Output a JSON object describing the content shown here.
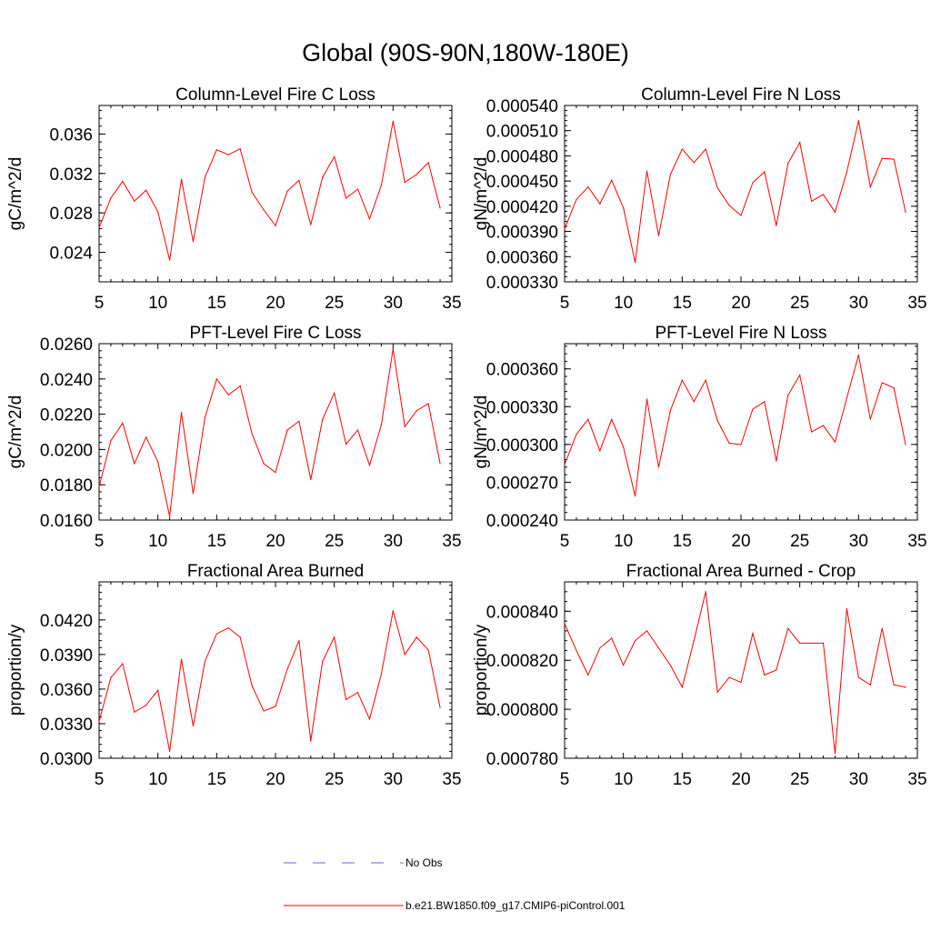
{
  "main_title": "Global (90S-90N,180W-180E)",
  "legend": [
    {
      "label": "No Obs",
      "style": "dashed",
      "color": "#6a6acc"
    },
    {
      "label": "b.e21.BW1850.f09_g17.CMIP6-piControl.001",
      "style": "solid",
      "color": "#ff0000"
    }
  ],
  "chart_data": [
    {
      "type": "line",
      "title": "Column-Level Fire C Loss",
      "ylabel": "gC/m^2/d",
      "xlabel": "",
      "xlim": [
        5,
        35
      ],
      "ylim": [
        0.021,
        0.0389
      ],
      "x_ticks": [
        "5",
        "10",
        "15",
        "20",
        "25",
        "30",
        "35"
      ],
      "y_ticks": [
        {
          "value": 0.024,
          "label": "0.024"
        },
        {
          "value": 0.028,
          "label": "0.028"
        },
        {
          "value": 0.032,
          "label": "0.032"
        },
        {
          "value": 0.036,
          "label": "0.036"
        }
      ],
      "series": [
        {
          "name": "b.e21.BW1850.f09_g17.CMIP6-piControl.001",
          "color": "#ff0000",
          "x": [
            5,
            6,
            7,
            8,
            9,
            10,
            11,
            12,
            13,
            14,
            15,
            16,
            17,
            18,
            19,
            20,
            21,
            22,
            23,
            24,
            25,
            26,
            27,
            28,
            29,
            30,
            31,
            32,
            33,
            34
          ],
          "values": [
            0.0265,
            0.0295,
            0.0312,
            0.0292,
            0.0303,
            0.0281,
            0.0232,
            0.0314,
            0.0251,
            0.0316,
            0.0344,
            0.0339,
            0.0345,
            0.0301,
            0.0283,
            0.0267,
            0.0302,
            0.0313,
            0.0268,
            0.0316,
            0.0337,
            0.0295,
            0.0304,
            0.0274,
            0.0308,
            0.0373,
            0.0311,
            0.0319,
            0.0331,
            0.0285
          ]
        }
      ]
    },
    {
      "type": "line",
      "title": "Column-Level Fire N Loss",
      "ylabel": "gN/m^2/d",
      "xlabel": "",
      "xlim": [
        5,
        35
      ],
      "ylim": [
        0.00033,
        0.00054
      ],
      "x_ticks": [
        "5",
        "10",
        "15",
        "20",
        "25",
        "30",
        "35"
      ],
      "y_ticks": [
        {
          "value": 0.00033,
          "label": "0.000330"
        },
        {
          "value": 0.00036,
          "label": "0.000360"
        },
        {
          "value": 0.00039,
          "label": "0.000390"
        },
        {
          "value": 0.00042,
          "label": "0.000420"
        },
        {
          "value": 0.00045,
          "label": "0.000450"
        },
        {
          "value": 0.00048,
          "label": "0.000480"
        },
        {
          "value": 0.00051,
          "label": "0.000510"
        },
        {
          "value": 0.00054,
          "label": "0.000540"
        }
      ],
      "series": [
        {
          "name": "b.e21.BW1850.f09_g17.CMIP6-piControl.001",
          "color": "#ff0000",
          "x": [
            5,
            6,
            7,
            8,
            9,
            10,
            11,
            12,
            13,
            14,
            15,
            16,
            17,
            18,
            19,
            20,
            21,
            22,
            23,
            24,
            25,
            26,
            27,
            28,
            29,
            30,
            31,
            32,
            33,
            34
          ],
          "values": [
            0.000393,
            0.000428,
            0.000443,
            0.000423,
            0.000451,
            0.000418,
            0.000353,
            0.000462,
            0.000385,
            0.000458,
            0.000488,
            0.000472,
            0.000488,
            0.000442,
            0.000421,
            0.000409,
            0.000448,
            0.000461,
            0.000397,
            0.000471,
            0.000496,
            0.000426,
            0.000434,
            0.000413,
            0.000461,
            0.000522,
            0.000443,
            0.000477,
            0.000476,
            0.000413
          ]
        }
      ]
    },
    {
      "type": "line",
      "title": "PFT-Level Fire C Loss",
      "ylabel": "gC/m^2/d",
      "xlabel": "",
      "xlim": [
        5,
        35
      ],
      "ylim": [
        0.016,
        0.026
      ],
      "x_ticks": [
        "5",
        "10",
        "15",
        "20",
        "25",
        "30",
        "35"
      ],
      "y_ticks": [
        {
          "value": 0.016,
          "label": "0.0160"
        },
        {
          "value": 0.018,
          "label": "0.0180"
        },
        {
          "value": 0.02,
          "label": "0.0200"
        },
        {
          "value": 0.022,
          "label": "0.0220"
        },
        {
          "value": 0.024,
          "label": "0.0240"
        },
        {
          "value": 0.026,
          "label": "0.0260"
        }
      ],
      "series": [
        {
          "name": "b.e21.BW1850.f09_g17.CMIP6-piControl.001",
          "color": "#ff0000",
          "x": [
            5,
            6,
            7,
            8,
            9,
            10,
            11,
            12,
            13,
            14,
            15,
            16,
            17,
            18,
            19,
            20,
            21,
            22,
            23,
            24,
            25,
            26,
            27,
            28,
            29,
            30,
            31,
            32,
            33,
            34
          ],
          "values": [
            0.0179,
            0.0205,
            0.0215,
            0.0192,
            0.0207,
            0.0193,
            0.0162,
            0.0221,
            0.0175,
            0.0218,
            0.024,
            0.0231,
            0.0236,
            0.0209,
            0.0192,
            0.0187,
            0.0211,
            0.0216,
            0.0183,
            0.0217,
            0.0232,
            0.0203,
            0.0211,
            0.0191,
            0.0214,
            0.0257,
            0.0213,
            0.0222,
            0.0226,
            0.0192
          ]
        }
      ]
    },
    {
      "type": "line",
      "title": "PFT-Level Fire N Loss",
      "ylabel": "gN/m^2/d",
      "xlabel": "",
      "xlim": [
        5,
        35
      ],
      "ylim": [
        0.00024,
        0.00038
      ],
      "x_ticks": [
        "5",
        "10",
        "15",
        "20",
        "25",
        "30",
        "35"
      ],
      "y_ticks": [
        {
          "value": 0.00024,
          "label": "0.000240"
        },
        {
          "value": 0.00027,
          "label": "0.000270"
        },
        {
          "value": 0.0003,
          "label": "0.000300"
        },
        {
          "value": 0.00033,
          "label": "0.000330"
        },
        {
          "value": 0.00036,
          "label": "0.000360"
        }
      ],
      "series": [
        {
          "name": "b.e21.BW1850.f09_g17.CMIP6-piControl.001",
          "color": "#ff0000",
          "x": [
            5,
            6,
            7,
            8,
            9,
            10,
            11,
            12,
            13,
            14,
            15,
            16,
            17,
            18,
            19,
            20,
            21,
            22,
            23,
            24,
            25,
            26,
            27,
            28,
            29,
            30,
            31,
            32,
            33,
            34
          ],
          "values": [
            0.000284,
            0.000308,
            0.00032,
            0.000295,
            0.00032,
            0.000298,
            0.000259,
            0.000336,
            0.000282,
            0.000327,
            0.000351,
            0.000334,
            0.000351,
            0.000319,
            0.000301,
            0.0003,
            0.000328,
            0.000334,
            0.000287,
            0.000339,
            0.000355,
            0.00031,
            0.000315,
            0.000302,
            0.000337,
            0.000371,
            0.00032,
            0.000349,
            0.000345,
            0.0003
          ]
        }
      ]
    },
    {
      "type": "line",
      "title": "Fractional Area Burned",
      "ylabel": "proportion/y",
      "xlabel": "",
      "xlim": [
        5,
        35
      ],
      "ylim": [
        0.03,
        0.0453
      ],
      "x_ticks": [
        "5",
        "10",
        "15",
        "20",
        "25",
        "30",
        "35"
      ],
      "y_ticks": [
        {
          "value": 0.03,
          "label": "0.0300"
        },
        {
          "value": 0.033,
          "label": "0.0330"
        },
        {
          "value": 0.036,
          "label": "0.0360"
        },
        {
          "value": 0.039,
          "label": "0.0390"
        },
        {
          "value": 0.042,
          "label": "0.0420"
        }
      ],
      "series": [
        {
          "name": "b.e21.BW1850.f09_g17.CMIP6-piControl.001",
          "color": "#ff0000",
          "x": [
            5,
            6,
            7,
            8,
            9,
            10,
            11,
            12,
            13,
            14,
            15,
            16,
            17,
            18,
            19,
            20,
            21,
            22,
            23,
            24,
            25,
            26,
            27,
            28,
            29,
            30,
            31,
            32,
            33,
            34
          ],
          "values": [
            0.0332,
            0.037,
            0.0382,
            0.034,
            0.0346,
            0.0359,
            0.0306,
            0.0386,
            0.0328,
            0.0384,
            0.0408,
            0.0413,
            0.0405,
            0.0363,
            0.0341,
            0.0345,
            0.0377,
            0.0402,
            0.0315,
            0.0384,
            0.0405,
            0.0351,
            0.0357,
            0.0334,
            0.0373,
            0.0428,
            0.039,
            0.0405,
            0.0394,
            0.0344
          ]
        }
      ]
    },
    {
      "type": "line",
      "title": "Fractional Area Burned - Crop",
      "ylabel": "proportion/y",
      "xlabel": "",
      "xlim": [
        5,
        35
      ],
      "ylim": [
        0.00078,
        0.000852
      ],
      "x_ticks": [
        "5",
        "10",
        "15",
        "20",
        "25",
        "30",
        "35"
      ],
      "y_ticks": [
        {
          "value": 0.00078,
          "label": "0.000780"
        },
        {
          "value": 0.0008,
          "label": "0.000800"
        },
        {
          "value": 0.00082,
          "label": "0.000820"
        },
        {
          "value": 0.00084,
          "label": "0.000840"
        }
      ],
      "series": [
        {
          "name": "b.e21.BW1850.f09_g17.CMIP6-piControl.001",
          "color": "#ff0000",
          "x": [
            5,
            6,
            7,
            8,
            9,
            10,
            11,
            12,
            13,
            14,
            15,
            16,
            17,
            18,
            19,
            20,
            21,
            22,
            23,
            24,
            25,
            26,
            27,
            28,
            29,
            30,
            31,
            32,
            33,
            34
          ],
          "values": [
            0.000835,
            0.000824,
            0.000814,
            0.000825,
            0.000829,
            0.000818,
            0.000828,
            0.000832,
            0.000825,
            0.000818,
            0.000809,
            0.000828,
            0.000848,
            0.000807,
            0.000813,
            0.000811,
            0.000831,
            0.000814,
            0.000816,
            0.000833,
            0.000827,
            0.000827,
            0.000827,
            0.000782,
            0.000841,
            0.000813,
            0.00081,
            0.000833,
            0.00081,
            0.000809
          ]
        }
      ]
    }
  ]
}
